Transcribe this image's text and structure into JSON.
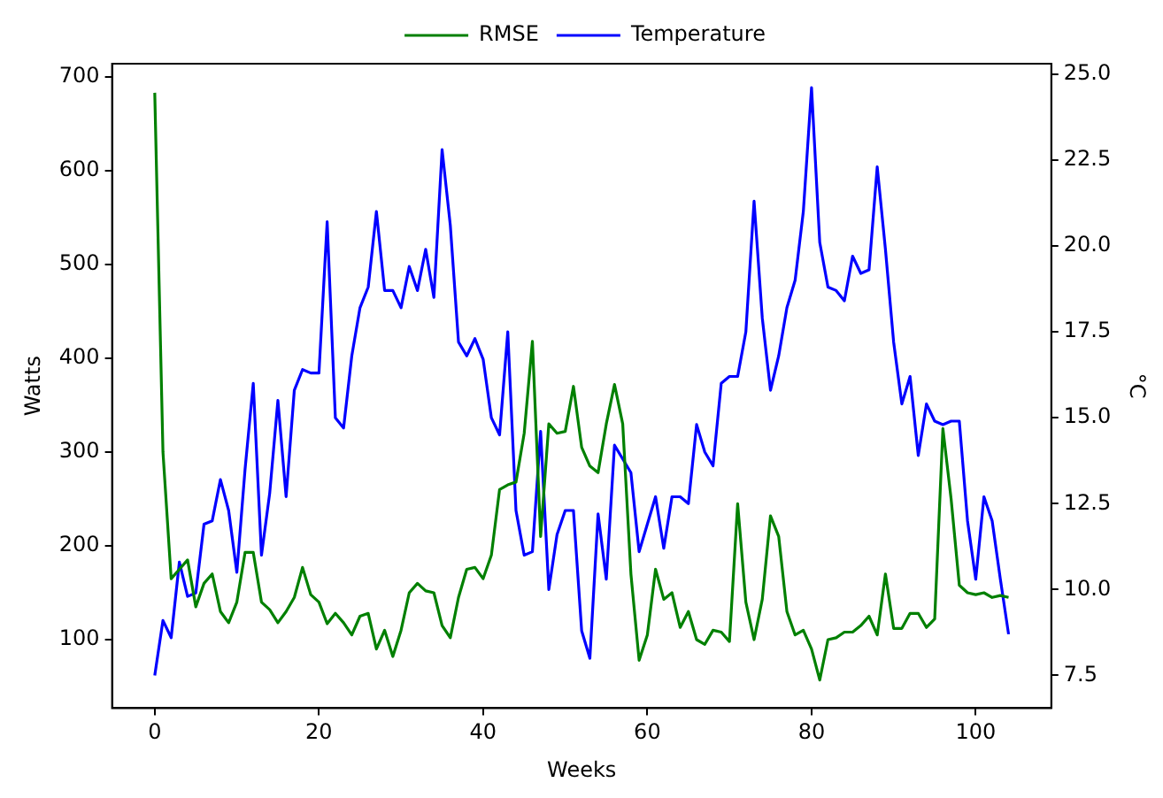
{
  "chart_data": {
    "type": "line",
    "xlabel": "Weeks",
    "ylabel": "Watts",
    "y2label": "°C",
    "legend": "top",
    "grid": false,
    "marker": "none",
    "line_style": "solid",
    "x": [
      0,
      1,
      2,
      3,
      4,
      5,
      6,
      7,
      8,
      9,
      10,
      11,
      12,
      13,
      14,
      15,
      16,
      17,
      18,
      19,
      20,
      21,
      22,
      23,
      24,
      25,
      26,
      27,
      28,
      29,
      30,
      31,
      32,
      33,
      34,
      35,
      36,
      37,
      38,
      39,
      40,
      41,
      42,
      43,
      44,
      45,
      46,
      47,
      48,
      49,
      50,
      51,
      52,
      53,
      54,
      55,
      56,
      57,
      58,
      59,
      60,
      61,
      62,
      63,
      64,
      65,
      66,
      67,
      68,
      69,
      70,
      71,
      72,
      73,
      74,
      75,
      76,
      77,
      78,
      79,
      80,
      81,
      82,
      83,
      84,
      85,
      86,
      87,
      88,
      89,
      90,
      91,
      92,
      93,
      94,
      95,
      96,
      97,
      98,
      99,
      100,
      101,
      102,
      103,
      104
    ],
    "xlim": [
      -5.2,
      109.2
    ],
    "xticks": [
      0,
      20,
      40,
      60,
      80,
      100
    ],
    "ylim": [
      27,
      714
    ],
    "yticks": [
      100,
      200,
      300,
      400,
      500,
      600,
      700
    ],
    "y2lim": [
      6.55,
      25.3
    ],
    "y2ticks": [
      {
        "value": 7.5,
        "label": "7.5"
      },
      {
        "value": 10,
        "label": "10.0"
      },
      {
        "value": 12.5,
        "label": "12.5"
      },
      {
        "value": 15,
        "label": "15.0"
      },
      {
        "value": 17.5,
        "label": "17.5"
      },
      {
        "value": 20,
        "label": "20.0"
      },
      {
        "value": 22.5,
        "label": "22.5"
      },
      {
        "value": 25,
        "label": "25.0"
      }
    ],
    "series": [
      {
        "name": "RMSE",
        "color": "#008000",
        "values": [
          683,
          300,
          165,
          175,
          185,
          135,
          160,
          170,
          130,
          118,
          140,
          193,
          193,
          140,
          132,
          118,
          130,
          145,
          177,
          148,
          140,
          117,
          128,
          118,
          105,
          125,
          128,
          90,
          110,
          82,
          110,
          150,
          160,
          152,
          150,
          115,
          102,
          145,
          175,
          177,
          165,
          190,
          260,
          265,
          268,
          320,
          418,
          210,
          330,
          320,
          322,
          370,
          305,
          285,
          278,
          330,
          372,
          330,
          170,
          78,
          105,
          175,
          143,
          150,
          113,
          130,
          100,
          95,
          110,
          108,
          98,
          245,
          140,
          100,
          143,
          232,
          210,
          130,
          105,
          110,
          90,
          57,
          100,
          102,
          108,
          108,
          115,
          125,
          105,
          170,
          112,
          112,
          128,
          128,
          113,
          122,
          325,
          250,
          158,
          150,
          148,
          150,
          145,
          147,
          145
        ]
      },
      {
        "name": "Temperature",
        "color": "#0000ff",
        "axis": "y2",
        "values": [
          7.5,
          9.1,
          8.6,
          10.8,
          9.8,
          9.9,
          11.9,
          12.0,
          13.2,
          12.3,
          10.5,
          13.5,
          16.0,
          11.0,
          12.8,
          15.5,
          12.7,
          15.8,
          16.4,
          16.3,
          16.3,
          20.7,
          15.0,
          14.7,
          16.8,
          18.2,
          18.8,
          21.0,
          18.7,
          18.7,
          18.2,
          19.4,
          18.7,
          19.9,
          18.5,
          22.8,
          20.6,
          17.2,
          16.8,
          17.3,
          16.7,
          15.0,
          14.5,
          17.5,
          12.3,
          11.0,
          11.1,
          14.6,
          10.0,
          11.6,
          12.3,
          12.3,
          8.8,
          8.0,
          12.2,
          10.3,
          14.2,
          13.8,
          13.4,
          11.1,
          11.9,
          12.7,
          11.2,
          12.7,
          12.7,
          12.5,
          14.8,
          14.0,
          13.6,
          16.0,
          16.2,
          16.2,
          17.5,
          21.3,
          17.9,
          15.8,
          16.8,
          18.2,
          19.0,
          21.0,
          24.6,
          20.1,
          18.8,
          18.7,
          18.4,
          19.7,
          19.2,
          19.3,
          22.3,
          19.9,
          17.2,
          15.4,
          16.2,
          13.9,
          15.4,
          14.9,
          14.8,
          14.9,
          14.9,
          12.0,
          10.3,
          12.7,
          12.0,
          10.3,
          8.7
        ]
      }
    ]
  }
}
